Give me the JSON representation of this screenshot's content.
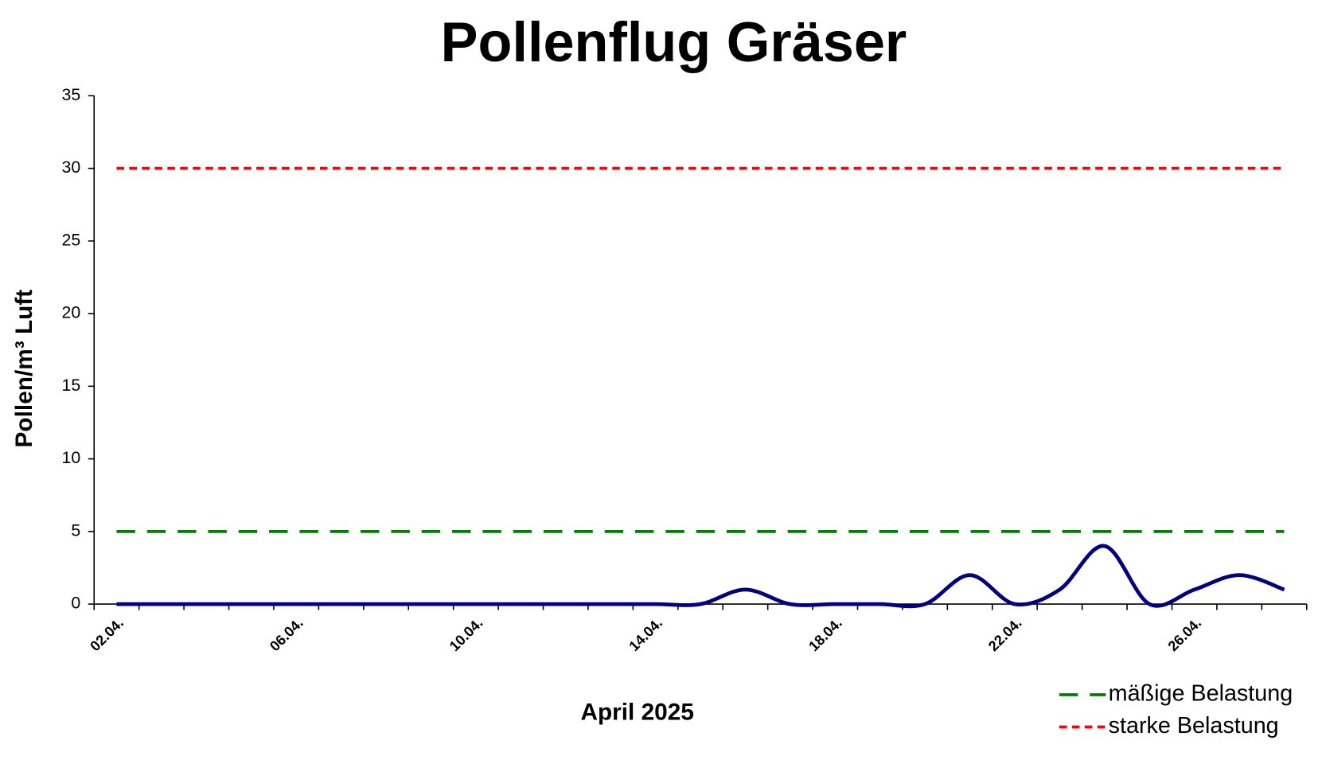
{
  "chart_data": {
    "type": "line",
    "title": "Pollenflug Gräser",
    "x_label": "April 2025",
    "y_label": "Pollen/m³ Luft",
    "categories": [
      "02.04.",
      null,
      null,
      null,
      "06.04.",
      null,
      null,
      null,
      "10.04.",
      null,
      null,
      null,
      "14.04.",
      null,
      null,
      null,
      "18.04.",
      null,
      null,
      null,
      "22.04.",
      null,
      null,
      null,
      "26.04.",
      null,
      null
    ],
    "series": [
      {
        "color": "#000080",
        "values": [
          0,
          0,
          0,
          0,
          0,
          0,
          0,
          0,
          0,
          0,
          0,
          0,
          0,
          0,
          1,
          0,
          0,
          0,
          0,
          2,
          0,
          1,
          4,
          0,
          1,
          2,
          1
        ]
      }
    ],
    "reference_lines": [
      {
        "name": "mäßige Belastung",
        "value": 5,
        "color": "#008000",
        "dash": "long"
      },
      {
        "name": "starke Belastung",
        "value": 30,
        "color": "#ff0000",
        "dash": "short"
      }
    ],
    "ylim": [
      0,
      35
    ],
    "yticks": [
      0,
      5,
      10,
      15,
      20,
      25,
      30,
      35
    ],
    "grid": false
  }
}
